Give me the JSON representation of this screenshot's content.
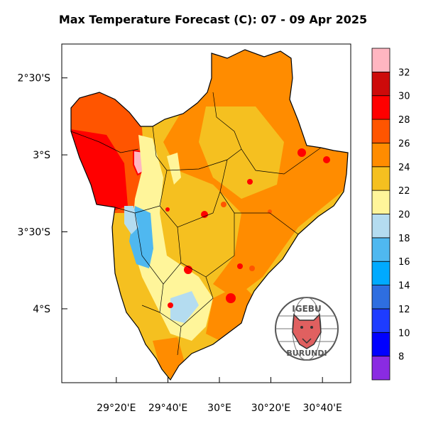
{
  "title": "Max Temperature Forecast (C): 07 - 09 Apr 2025",
  "axes": {
    "x_ticks": [
      {
        "value": 29.333,
        "label": "29°20'E"
      },
      {
        "value": 29.667,
        "label": "29°40'E"
      },
      {
        "value": 30.0,
        "label": "30°E"
      },
      {
        "value": 30.333,
        "label": "30°20'E"
      },
      {
        "value": 30.667,
        "label": "30°40'E"
      }
    ],
    "y_ticks": [
      {
        "value": -2.5,
        "label": "2°30'S"
      },
      {
        "value": -3.0,
        "label": "3°S"
      },
      {
        "value": -3.5,
        "label": "3°30'S"
      },
      {
        "value": -4.0,
        "label": "4°S"
      }
    ],
    "lon_range": [
      28.98,
      30.85
    ],
    "lat_range": [
      -4.48,
      -2.28
    ]
  },
  "colorbar": {
    "labels": [
      "8",
      "10",
      "12",
      "14",
      "16",
      "18",
      "20",
      "22",
      "24",
      "26",
      "28",
      "30",
      "32"
    ],
    "colors": [
      "#8a2be2",
      "#0000ff",
      "#1e3cff",
      "#2e6ee0",
      "#00aaff",
      "#4fb8f0",
      "#b4dcf0",
      "#fff59a",
      "#f5c020",
      "#ff8c00",
      "#ff5500",
      "#ff0000",
      "#cd0a0a",
      "#ffb6c1"
    ]
  },
  "logo": {
    "top_text": "IGEBU",
    "bottom_text": "BURUNDI",
    "ring_color": "#555555",
    "face_color": "#e06060"
  }
}
